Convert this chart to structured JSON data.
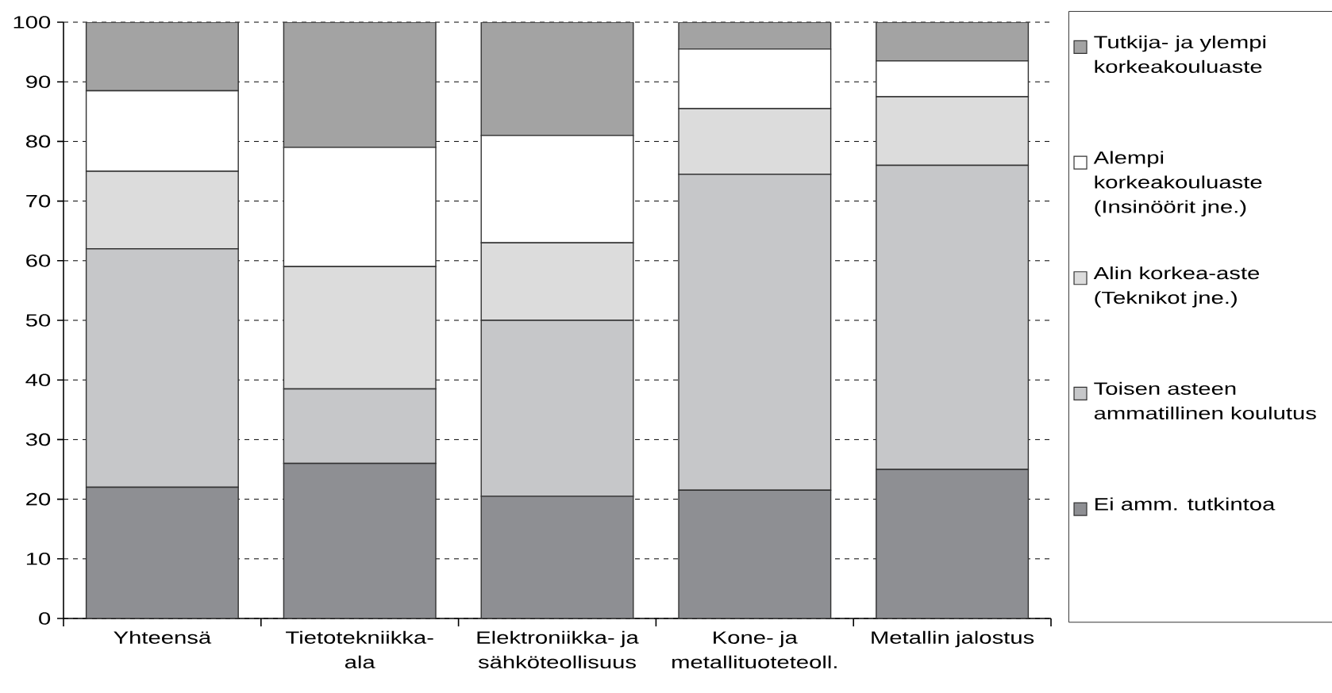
{
  "chart_data": {
    "type": "bar",
    "stacked": true,
    "categories": [
      "Yhteensä",
      "Tietotekniikka-ala",
      "Elektroniikka- ja sähköteollisuus",
      "Kone- ja metallituoteteoll.",
      "Metallin jalostus"
    ],
    "series": [
      {
        "name": "Ei amm. tutkintoa",
        "color": "#8e8f93",
        "values": [
          22,
          26,
          20.5,
          21.5,
          25
        ]
      },
      {
        "name": "Toisen asteen ammatillinen koulutus",
        "color": "#c6c7c9",
        "values": [
          40,
          12.5,
          29.5,
          53,
          51
        ]
      },
      {
        "name": "Alin korkea-aste (Teknikot jne.)",
        "color": "#dcdcdc",
        "values": [
          13,
          20.5,
          13,
          11,
          11.5
        ]
      },
      {
        "name": "Alempi korkeakouluaste (Insinöörit jne.)",
        "color": "#ffffff",
        "values": [
          13.5,
          20,
          18,
          10,
          6
        ]
      },
      {
        "name": "Tutkija- ja ylempi korkeakouluaste",
        "color": "#a3a3a3",
        "values": [
          11.5,
          21,
          19,
          4.5,
          6.5
        ]
      }
    ],
    "ylim": [
      0,
      100
    ],
    "yticks": [
      0,
      10,
      20,
      30,
      40,
      50,
      60,
      70,
      80,
      90,
      100
    ],
    "grid": "y",
    "legend": "right"
  }
}
